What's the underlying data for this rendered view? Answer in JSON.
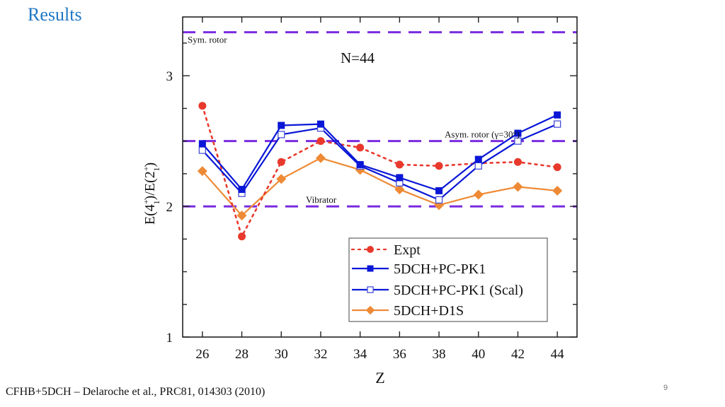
{
  "slide": {
    "title": "Results",
    "footer": "CFHB+5DCH – Delaroche et al., PRC81, 014303 (2010)",
    "page_number": "9"
  },
  "chart_data": {
    "type": "line",
    "title": "N=44",
    "xlabel": "Z",
    "ylabel": "E(4₁⁺)/E(2₁⁺)",
    "ylabel_parts": {
      "main1": "E(4",
      "sup1": "+",
      "sub1": "1",
      "mid": ")/E(2",
      "sup2": "+",
      "sub2": "1",
      "end": ")"
    },
    "xlim": [
      25,
      45
    ],
    "ylim": [
      1,
      3.45
    ],
    "x_ticks": [
      26,
      28,
      30,
      32,
      34,
      36,
      38,
      40,
      42,
      44
    ],
    "x_tick_labels": [
      "26",
      "28",
      "30",
      "32",
      "34",
      "36",
      "38",
      "40",
      "42",
      "44"
    ],
    "y_major_ticks": [
      1,
      2,
      3
    ],
    "y_tick_labels": [
      "1",
      "2",
      "3"
    ],
    "y_minor_step": 0.25,
    "grid": false,
    "legend_position": "bottom-right",
    "x": [
      26,
      28,
      30,
      32,
      34,
      36,
      38,
      40,
      42,
      44
    ],
    "series": [
      {
        "name": "Expt",
        "color": "#e8392c",
        "marker": "circle-filled",
        "line": "dotted",
        "values": [
          2.77,
          1.77,
          2.34,
          2.5,
          2.45,
          2.32,
          2.31,
          2.33,
          2.34,
          2.3
        ]
      },
      {
        "name": "5DCH+PC-PK1",
        "color": "#0a17d6",
        "marker": "square-filled",
        "line": "solid",
        "values": [
          2.48,
          2.13,
          2.62,
          2.63,
          2.32,
          2.22,
          2.12,
          2.36,
          2.56,
          2.7
        ]
      },
      {
        "name": "5DCH+PC-PK1 (Scal)",
        "color": "#0a17d6",
        "marker": "square-open",
        "line": "solid",
        "values": [
          2.43,
          2.1,
          2.55,
          2.6,
          2.31,
          2.18,
          2.05,
          2.31,
          2.5,
          2.63
        ]
      },
      {
        "name": "5DCH+D1S",
        "color": "#ee8a35",
        "marker": "diamond-filled",
        "line": "solid",
        "values": [
          2.27,
          1.93,
          2.21,
          2.37,
          2.28,
          2.13,
          2.01,
          2.09,
          2.15,
          2.12
        ]
      }
    ],
    "reference_lines": [
      {
        "name": "Sym. rotor",
        "value": 3.333,
        "color": "#7a2be0",
        "style": "dashed"
      },
      {
        "name": "Asym. rotor (γ=30°)",
        "value": 2.5,
        "color": "#7a2be0",
        "style": "dashed"
      },
      {
        "name": "Vibrator",
        "value": 2.0,
        "color": "#7a2be0",
        "style": "dashed"
      }
    ]
  }
}
